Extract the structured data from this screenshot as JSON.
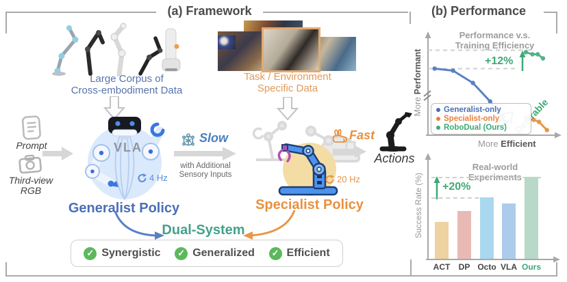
{
  "frame": {
    "panel_a_title": "(a) Framework",
    "panel_b_title": "(b) Performance"
  },
  "framework": {
    "corpus_label_line1": "Large Corpus of",
    "corpus_label_line2": "Cross-embodiment Data",
    "task_label_line1": "Task / Environment",
    "task_label_line2": "Specific Data",
    "prompt_label": "Prompt",
    "rgb_label_line1": "Third-view",
    "rgb_label_line2": "RGB",
    "vla_label": "VLA",
    "generalist_rate": "4 Hz",
    "generalist_title": "Generalist Policy",
    "generalist_color": "#4a6fb5",
    "slow_label": "Slow",
    "sensory_line1": "with Additional",
    "sensory_line2": "Sensory Inputs",
    "specialist_rate": "20 Hz",
    "specialist_title": "Specialist Policy",
    "specialist_color": "#e8913f",
    "fast_label": "Fast",
    "actions_label": "Actions",
    "dual_system_label": "Dual-System",
    "dual_system_color": "#45a189",
    "features": [
      {
        "label": "Synergistic"
      },
      {
        "label": "Generalized"
      },
      {
        "label": "Efficient"
      }
    ]
  },
  "chart_data": [
    {
      "type": "line",
      "title_line1": "Performance v.s.",
      "title_line2": "Training Efficiency",
      "xlabel_regular": "More",
      "xlabel_bold": "Efficient",
      "ylabel_regular": "More",
      "ylabel_bold": "Performant",
      "annotation": "+12%",
      "desirable_label": "Desirable",
      "accent_green": "#3fa876",
      "xlim": [
        0,
        100
      ],
      "ylim": [
        0,
        100
      ],
      "grid": false,
      "legend_position": "lower-left",
      "legend": [
        {
          "name": "Generalist-only",
          "color": "#4a6fb5"
        },
        {
          "name": "Specialist-only",
          "color": "#e8813c"
        },
        {
          "name": "RoboDual (Ours)",
          "color": "#3fa876"
        }
      ],
      "series": [
        {
          "name": "Generalist-only",
          "color": "#5b7fc4",
          "x": [
            5,
            19,
            34,
            47,
            59
          ],
          "y": [
            65,
            63,
            51,
            33,
            12
          ]
        },
        {
          "name": "RoboDual (Ours)",
          "color": "#52b188",
          "x": [
            74,
            79,
            83,
            87
          ],
          "y": [
            81,
            79,
            79,
            75
          ]
        },
        {
          "name": "Specialist-only",
          "color": "#e8964a",
          "x": [
            74,
            80,
            84,
            90
          ],
          "y": [
            17,
            15,
            13,
            5
          ]
        }
      ],
      "dashed_levels": [
        {
          "y": 83,
          "x1": 0,
          "x2": 80
        },
        {
          "y": 65,
          "x1": 0,
          "x2": 68
        }
      ]
    },
    {
      "type": "bar",
      "title_line1": "Real-world",
      "title_line2": "Experiments",
      "ylabel": "Success Rate (%)",
      "annotation": "+20%",
      "accent_green": "#3fa876",
      "ylim": [
        0,
        100
      ],
      "categories": [
        "ACT",
        "DP",
        "Octo",
        "VLA",
        "Ours"
      ],
      "values": [
        36,
        47,
        60,
        54,
        80
      ],
      "colors": [
        "#eed2a0",
        "#e9bab5",
        "#a9d8ef",
        "#adccec",
        "#b8d9c7"
      ],
      "label_colors": [
        "#444444",
        "#444444",
        "#444444",
        "#444444",
        "#3fa876"
      ],
      "dash_refs": [
        4,
        2
      ]
    }
  ]
}
